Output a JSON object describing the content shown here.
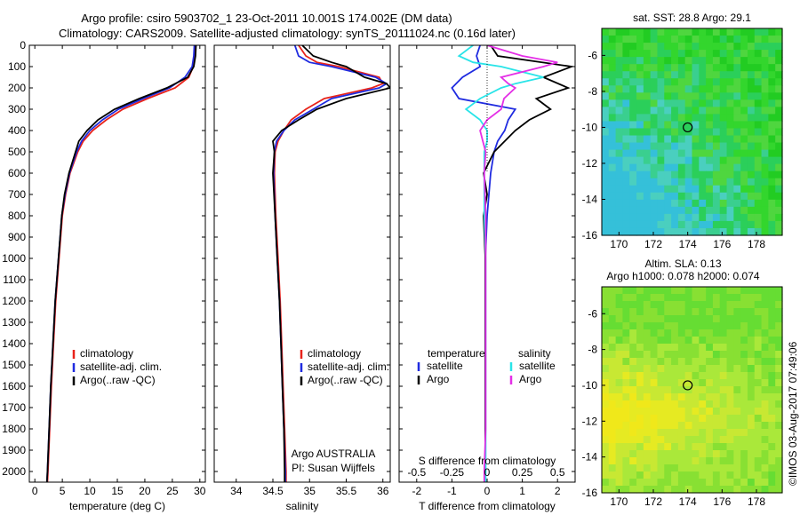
{
  "figure": {
    "title_line1": "Argo profile: csiro 5903702_1 23-Oct-2011 10.001S 174.002E (DM data)",
    "title_line2": "Climatology: CARS2009. Satellite-adjusted climatology: synTS_20111024.nc (0.16d later)",
    "timestamp": "©IMOS 03-Aug-2017 07:49:06",
    "argo_label_line1": "Argo AUSTRALIA",
    "argo_label_line2": "PI: Susan Wijffels"
  },
  "colors": {
    "climatology": "#e8231a",
    "satellite": "#1f2be0",
    "argo": "#000000",
    "satellite_salinity": "#29e4e8",
    "argo_salinity": "#e42fe6"
  },
  "chart_data": [
    {
      "id": "temperature",
      "type": "line",
      "xlabel": "temperature (deg C)",
      "ylabel": "",
      "xlim": [
        -1,
        31
      ],
      "ylim": [
        2050,
        0
      ],
      "xticks": [
        0,
        5,
        10,
        15,
        20,
        25,
        30
      ],
      "yticks": [
        0,
        100,
        200,
        300,
        400,
        500,
        600,
        700,
        800,
        900,
        1000,
        1100,
        1200,
        1300,
        1400,
        1500,
        1600,
        1700,
        1800,
        1900,
        2000
      ],
      "legend": [
        "climatology",
        "satellite-adj. clim.",
        "Argo(..raw -QC)"
      ],
      "legend_position": "lower-center",
      "series": [
        {
          "name": "climatology",
          "color_key": "climatology",
          "depth": [
            0,
            50,
            100,
            150,
            200,
            250,
            300,
            350,
            400,
            450,
            500,
            600,
            700,
            800,
            1000,
            1200,
            1400,
            1600,
            1800,
            2000,
            2050
          ],
          "values": [
            29.2,
            29.1,
            28.8,
            28.0,
            25.5,
            20.5,
            16.0,
            13.0,
            10.5,
            8.8,
            7.8,
            6.4,
            5.6,
            5.0,
            4.4,
            3.8,
            3.4,
            3.0,
            2.7,
            2.4,
            2.3
          ]
        },
        {
          "name": "satellite-adj. clim.",
          "color_key": "satellite",
          "depth": [
            0,
            50,
            100,
            150,
            200,
            250,
            300,
            350,
            400,
            450,
            500,
            600,
            700,
            800,
            1000,
            1200,
            1400,
            1600,
            1800,
            2000,
            2050
          ],
          "values": [
            29.0,
            28.9,
            28.6,
            27.3,
            24.5,
            19.7,
            15.2,
            12.3,
            10.0,
            8.5,
            7.6,
            6.3,
            5.5,
            4.9,
            4.3,
            3.7,
            3.3,
            2.9,
            2.6,
            2.3,
            2.2
          ]
        },
        {
          "name": "Argo(..raw -QC)",
          "color_key": "argo",
          "depth": [
            0,
            50,
            100,
            150,
            200,
            250,
            300,
            350,
            400,
            450,
            500,
            600,
            700,
            800,
            1000,
            1200,
            1400,
            1600,
            1800,
            2000,
            2050
          ],
          "values": [
            29.3,
            29.2,
            28.9,
            27.8,
            24.0,
            19.0,
            14.5,
            11.5,
            9.5,
            8.0,
            7.4,
            6.2,
            5.4,
            4.9,
            4.3,
            3.7,
            3.3,
            2.9,
            2.6,
            2.3,
            2.2
          ]
        }
      ]
    },
    {
      "id": "salinity",
      "type": "line",
      "xlabel": "salinity",
      "ylabel": "",
      "xlim": [
        33.7,
        36.1
      ],
      "ylim": [
        2050,
        0
      ],
      "xticks": [
        34,
        34.5,
        35,
        35.5,
        36
      ],
      "legend": [
        "climatology",
        "satellite-adj. clim.",
        "Argo(..raw -QC)"
      ],
      "legend_position": "lower-center",
      "series": [
        {
          "name": "climatology",
          "color_key": "climatology",
          "depth": [
            0,
            50,
            80,
            100,
            150,
            180,
            200,
            250,
            300,
            350,
            400,
            450,
            500,
            600,
            800,
            1000,
            1200,
            1400,
            1600,
            1800,
            2000,
            2050
          ],
          "values": [
            34.85,
            34.95,
            35.1,
            35.4,
            35.95,
            36.0,
            35.85,
            35.2,
            34.95,
            34.75,
            34.65,
            34.57,
            34.53,
            34.52,
            34.54,
            34.57,
            34.6,
            34.62,
            34.64,
            34.66,
            34.68,
            34.68
          ]
        },
        {
          "name": "satellite-adj. clim.",
          "color_key": "satellite",
          "depth": [
            0,
            50,
            80,
            100,
            150,
            180,
            200,
            250,
            300,
            350,
            400,
            450,
            500,
            600,
            800,
            1000,
            1200,
            1400,
            1600,
            1800,
            2000,
            2050
          ],
          "values": [
            34.8,
            34.85,
            35.0,
            35.3,
            35.9,
            36.05,
            35.95,
            35.3,
            35.05,
            34.8,
            34.65,
            34.55,
            34.52,
            34.51,
            34.53,
            34.56,
            34.59,
            34.61,
            34.63,
            34.65,
            34.67,
            34.67
          ]
        },
        {
          "name": "Argo(..raw -QC)",
          "color_key": "argo",
          "depth": [
            0,
            50,
            80,
            100,
            150,
            180,
            200,
            250,
            300,
            350,
            400,
            450,
            500,
            600,
            800,
            1000,
            1200,
            1400,
            1600,
            1800,
            2000,
            2050
          ],
          "values": [
            34.9,
            35.05,
            35.3,
            35.5,
            35.75,
            36.05,
            36.1,
            35.5,
            35.1,
            34.85,
            34.62,
            34.5,
            34.52,
            34.5,
            34.53,
            34.56,
            34.59,
            34.61,
            34.63,
            34.65,
            34.66,
            34.66
          ]
        }
      ]
    },
    {
      "id": "difference",
      "type": "line",
      "xlabel": "T difference from climatology",
      "xlabel_top": "S difference from climatology",
      "xlim": [
        -2.5,
        2.5
      ],
      "ylim": [
        2050,
        0
      ],
      "xticks": [
        -2,
        -1,
        0,
        1,
        2
      ],
      "xticks_salinity": [
        -0.5,
        -0.25,
        0,
        0.25,
        0.5
      ],
      "legend_title_temperature": "temperature",
      "legend_title_salinity": "salinity",
      "legend_entries": [
        "satellite",
        "Argo",
        "satellite",
        "Argo"
      ],
      "legend_position": "lower-center",
      "series": [
        {
          "name": "temperature satellite",
          "color_key": "satellite",
          "depth": [
            0,
            50,
            100,
            150,
            200,
            250,
            300,
            350,
            400,
            450,
            500,
            600,
            700,
            800,
            1000,
            1200,
            1400,
            1600,
            1800,
            2000,
            2050
          ],
          "values": [
            -0.2,
            -0.3,
            -0.2,
            -0.7,
            -1.0,
            -0.8,
            0.8,
            0.6,
            0.5,
            0.3,
            0.2,
            0.1,
            0.05,
            0.0,
            -0.05,
            -0.05,
            -0.05,
            -0.05,
            -0.05,
            -0.05,
            -0.05
          ]
        },
        {
          "name": "temperature Argo",
          "color_key": "argo",
          "depth": [
            0,
            50,
            100,
            150,
            200,
            250,
            300,
            350,
            400,
            450,
            500,
            600,
            700,
            800,
            1000,
            1200,
            1400,
            1600,
            1800,
            2000,
            2050
          ],
          "values": [
            0.1,
            0.3,
            2.4,
            1.6,
            2.3,
            1.4,
            1.8,
            1.2,
            0.8,
            0.5,
            0.2,
            -0.1,
            0.0,
            -0.1,
            -0.05,
            -0.05,
            -0.05,
            -0.05,
            -0.05,
            -0.05,
            -0.05
          ]
        },
        {
          "name": "salinity satellite",
          "color_key": "satellite_salinity",
          "depth": [
            0,
            50,
            80,
            100,
            150,
            180,
            200,
            250,
            300,
            350,
            400,
            450,
            500,
            600,
            800,
            1000,
            1200,
            1400,
            1600,
            1800,
            2000,
            2050
          ],
          "values": [
            -0.1,
            -0.2,
            -0.1,
            0.1,
            0.4,
            0.2,
            0.1,
            -0.05,
            -0.15,
            -0.05,
            0.0,
            0.0,
            -0.02,
            -0.02,
            -0.02,
            -0.01,
            -0.01,
            -0.01,
            -0.01,
            -0.01,
            -0.01,
            -0.01
          ]
        },
        {
          "name": "salinity Argo",
          "color_key": "argo_salinity",
          "depth": [
            0,
            50,
            80,
            100,
            150,
            180,
            200,
            250,
            300,
            350,
            400,
            450,
            500,
            600,
            800,
            1000,
            1200,
            1400,
            1600,
            1800,
            2000,
            2050
          ],
          "values": [
            0.0,
            0.25,
            0.5,
            0.4,
            0.1,
            0.15,
            0.2,
            0.12,
            0.1,
            0.0,
            -0.05,
            -0.03,
            -0.01,
            -0.02,
            -0.01,
            -0.01,
            -0.01,
            -0.01,
            -0.01,
            -0.01,
            -0.02,
            -0.02
          ]
        }
      ]
    },
    {
      "id": "sst_map",
      "type": "heatmap",
      "title": "sat. SST: 28.8 Argo: 29.1",
      "xlim": [
        169,
        179.5
      ],
      "ylim": [
        -16,
        -4.5
      ],
      "xticks": [
        170,
        172,
        174,
        176,
        178
      ],
      "yticks": [
        -6,
        -8,
        -10,
        -12,
        -14,
        -16
      ],
      "marker": {
        "lon": 174.0,
        "lat": -10.0
      },
      "colors": [
        "#22cc22",
        "#33d62d",
        "#4fd63f",
        "#2bcf5a",
        "#3acf8f",
        "#4acfbf",
        "#35c0d9"
      ]
    },
    {
      "id": "sla_map",
      "type": "heatmap",
      "title": "Altim. SLA: 0.13",
      "subtitle": "Argo h1000: 0.078 h2000: 0.074",
      "xlim": [
        169,
        179.5
      ],
      "ylim": [
        -16,
        -4.5
      ],
      "xticks": [
        170,
        172,
        174,
        176,
        178
      ],
      "yticks": [
        -6,
        -8,
        -10,
        -12,
        -14,
        -16
      ],
      "marker": {
        "lon": 174.0,
        "lat": -10.0
      },
      "colors": [
        "#66dd33",
        "#88e033",
        "#aae83a",
        "#c8e833",
        "#e6ea22",
        "#f0e81a",
        "#5ed63a"
      ]
    }
  ]
}
